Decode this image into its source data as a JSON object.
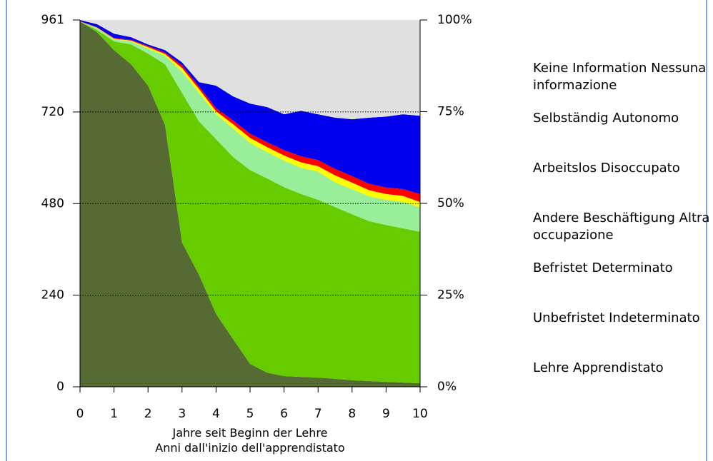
{
  "chart_data": {
    "type": "stacked-area",
    "x_label": "Jahre seit Beginn der Lehre\nAnni dall'inizio dell'apprendistato",
    "x": [
      0,
      0.5,
      1,
      1.5,
      2,
      2.5,
      3,
      3.5,
      4,
      4.5,
      5,
      5.5,
      6,
      6.5,
      7,
      7.5,
      8,
      8.5,
      9,
      9.5,
      10
    ],
    "xlim": [
      0,
      10
    ],
    "xticks": [
      0,
      1,
      2,
      3,
      4,
      5,
      6,
      7,
      8,
      9,
      10
    ],
    "ylim": [
      0,
      961
    ],
    "yticks": [
      0,
      240,
      480,
      720,
      961
    ],
    "y2lim": [
      0,
      100
    ],
    "y2ticks": [
      {
        "value": 0,
        "label": "0%"
      },
      {
        "value": 25,
        "label": "25%"
      },
      {
        "value": 50,
        "label": "50%"
      },
      {
        "value": 75,
        "label": "75%"
      },
      {
        "value": 100,
        "label": "100%"
      }
    ],
    "grid": true,
    "series": [
      {
        "name": "Lehre\nApprendistato",
        "color": "#566a33",
        "values": [
          957,
          929,
          882,
          845,
          789,
          686,
          378,
          293,
          191,
          125,
          60,
          37,
          28,
          26,
          24,
          21,
          17,
          15,
          13,
          11,
          9
        ]
      },
      {
        "name": "Unbefristet\nIndeterminato",
        "color": "#66cc00",
        "values": [
          0,
          6,
          23,
          52,
          84,
          159,
          392,
          402,
          458,
          477,
          508,
          509,
          495,
          479,
          466,
          450,
          435,
          419,
          411,
          404,
          397
        ]
      },
      {
        "name": "Befristet\nDeterminato",
        "color": "#99ee99",
        "values": [
          0,
          5,
          5,
          8,
          13,
          22,
          56,
          75,
          65,
          75,
          71,
          69,
          70,
          69,
          74,
          65,
          66,
          65,
          66,
          69,
          65
        ]
      },
      {
        "name": "Andere Beschäftigung\nAltra occupazione",
        "color": "#ffff00",
        "values": [
          0,
          1,
          2,
          2,
          4,
          5,
          9,
          10,
          8,
          11,
          13,
          13,
          13,
          14,
          14,
          18,
          17,
          16,
          15,
          16,
          13
        ]
      },
      {
        "name": "Arbeitslos\nDisoccupato",
        "color": "#ff0000",
        "values": [
          1,
          1,
          2,
          2,
          3,
          4,
          7,
          7,
          8,
          10,
          11,
          13,
          14,
          16,
          16,
          17,
          17,
          17,
          17,
          18,
          21
        ]
      },
      {
        "name": "Selbständig\nAutonomo",
        "color": "#0000ee",
        "values": [
          3,
          8,
          11,
          7,
          4,
          6,
          8,
          11,
          59,
          63,
          79,
          92,
          94,
          119,
          120,
          134,
          149,
          173,
          186,
          196,
          205
        ]
      },
      {
        "name": "Keine Information\nNessuna informazione",
        "color": "#e0e0e0",
        "values": [
          0,
          11,
          36,
          45,
          64,
          79,
          111,
          163,
          172,
          200,
          219,
          228,
          247,
          238,
          247,
          256,
          260,
          256,
          253,
          247,
          251
        ]
      }
    ]
  }
}
